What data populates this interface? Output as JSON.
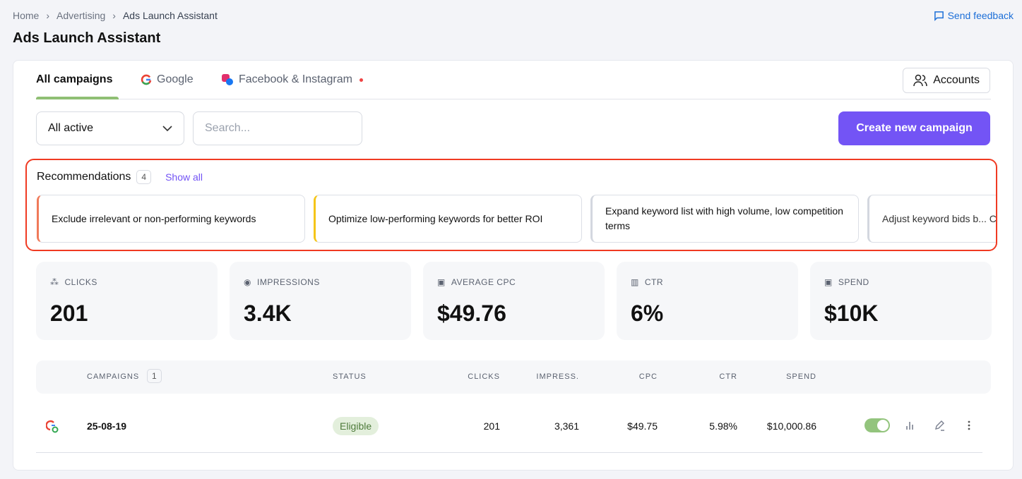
{
  "breadcrumb": [
    "Home",
    "Advertising",
    "Ads Launch Assistant"
  ],
  "page_title": "Ads Launch Assistant",
  "send_feedback": "Send feedback",
  "tabs": [
    {
      "label": "All campaigns",
      "active": true
    },
    {
      "label": "Google",
      "icon": "google-icon"
    },
    {
      "label": "Facebook & Instagram",
      "icon": "meta-icon",
      "has_dot": true
    }
  ],
  "accounts_label": "Accounts",
  "filter": {
    "selected": "All active"
  },
  "search": {
    "placeholder": "Search..."
  },
  "create_label": "Create new campaign",
  "recommendations": {
    "title": "Recommendations",
    "count": "4",
    "show_all": "Show all",
    "items": [
      {
        "text": "Exclude irrelevant or non-performing keywords",
        "color": "#f07a5a"
      },
      {
        "text": "Optimize low-performing keywords for better ROI",
        "color": "#f5c518"
      },
      {
        "text": "Expand keyword list with high volume, low competition terms",
        "color": "#d3d7df"
      },
      {
        "text": "Adjust keyword bids b... CPC",
        "color": "#d3d7df"
      }
    ]
  },
  "stats": [
    {
      "label": "CLICKS",
      "value": "201",
      "icon": "cursor-click-icon"
    },
    {
      "label": "IMPRESSIONS",
      "value": "3.4K",
      "icon": "eye-icon"
    },
    {
      "label": "AVERAGE CPC",
      "value": "$49.76",
      "icon": "money-cursor-icon"
    },
    {
      "label": "CTR",
      "value": "6%",
      "icon": "chart-sparkle-icon"
    },
    {
      "label": "SPEND",
      "value": "$10K",
      "icon": "money-icon"
    }
  ],
  "table": {
    "headers": {
      "campaigns": "CAMPAIGNS",
      "count": "1",
      "status": "STATUS",
      "clicks": "CLICKS",
      "impress": "IMPRESS.",
      "cpc": "CPC",
      "ctr": "CTR",
      "spend": "SPEND"
    },
    "rows": [
      {
        "name": "25-08-19",
        "status": "Eligible",
        "clicks": "201",
        "impress": "3,361",
        "cpc": "$49.75",
        "ctr": "5.98%",
        "spend": "$10,000.86",
        "enabled": true
      }
    ]
  },
  "colors": {
    "accent": "#7354f5",
    "active_tab": "#8fbf74",
    "highlight": "#f03a22"
  }
}
